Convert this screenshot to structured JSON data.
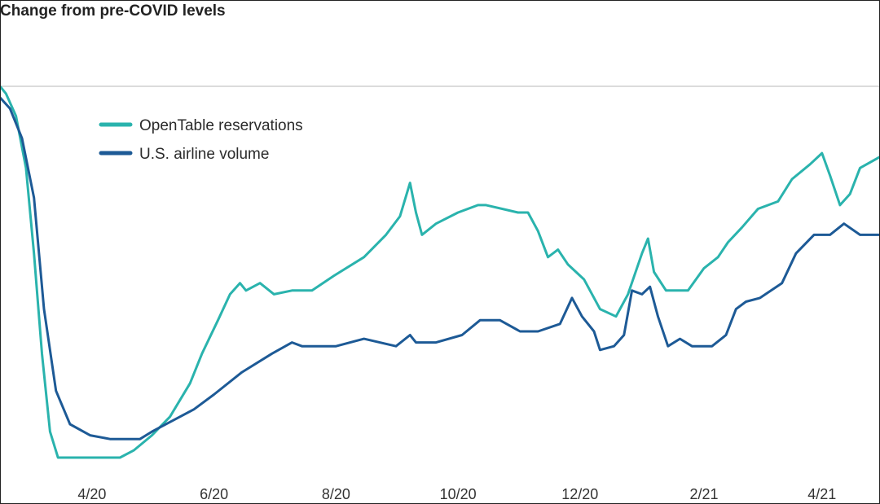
{
  "chart_data": {
    "type": "line",
    "title": "Change from pre-COVID levels",
    "xlabel": "",
    "ylabel": "",
    "x_ticks": [
      "4/20",
      "6/20",
      "8/20",
      "10/20",
      "12/20",
      "2/21",
      "4/21"
    ],
    "x_range": [
      "2020-02-15",
      "2021-04-30"
    ],
    "ylim": [
      -100,
      0
    ],
    "reference_line": 0,
    "grid": false,
    "legend_position": "top-left",
    "series": [
      {
        "name": "OpenTable reservations",
        "color": "#2ab3ad",
        "points": [
          [
            "2020-02-15",
            0
          ],
          [
            "2020-02-18",
            -2
          ],
          [
            "2020-02-23",
            -8
          ],
          [
            "2020-02-28",
            -22
          ],
          [
            "2020-03-03",
            -45
          ],
          [
            "2020-03-07",
            -72
          ],
          [
            "2020-03-11",
            -93
          ],
          [
            "2020-03-15",
            -100
          ],
          [
            "2020-04-01",
            -100
          ],
          [
            "2020-04-15",
            -100
          ],
          [
            "2020-04-22",
            -98
          ],
          [
            "2020-05-01",
            -94
          ],
          [
            "2020-05-10",
            -89
          ],
          [
            "2020-05-20",
            -80
          ],
          [
            "2020-05-26",
            -72
          ],
          [
            "2020-06-03",
            -63
          ],
          [
            "2020-06-09",
            -56
          ],
          [
            "2020-06-14",
            -53
          ],
          [
            "2020-06-17",
            -55
          ],
          [
            "2020-06-24",
            -53
          ],
          [
            "2020-07-01",
            -56
          ],
          [
            "2020-07-10",
            -55
          ],
          [
            "2020-07-20",
            -55
          ],
          [
            "2020-07-31",
            -51
          ],
          [
            "2020-08-15",
            -46
          ],
          [
            "2020-08-26",
            -40
          ],
          [
            "2020-09-02",
            -35
          ],
          [
            "2020-09-07",
            -26
          ],
          [
            "2020-09-10",
            -34
          ],
          [
            "2020-09-13",
            -40
          ],
          [
            "2020-09-20",
            -37
          ],
          [
            "2020-10-01",
            -34
          ],
          [
            "2020-10-11",
            -32
          ],
          [
            "2020-10-15",
            -32
          ],
          [
            "2020-10-31",
            -34
          ],
          [
            "2020-11-05",
            -34
          ],
          [
            "2020-11-10",
            -39
          ],
          [
            "2020-11-15",
            -46
          ],
          [
            "2020-11-20",
            -44
          ],
          [
            "2020-11-25",
            -48
          ],
          [
            "2020-12-03",
            -52
          ],
          [
            "2020-12-11",
            -60
          ],
          [
            "2020-12-19",
            -62
          ],
          [
            "2020-12-25",
            -56
          ],
          [
            "2021-01-01",
            -45
          ],
          [
            "2021-01-04",
            -41
          ],
          [
            "2021-01-07",
            -50
          ],
          [
            "2021-01-13",
            -55
          ],
          [
            "2021-01-24",
            -55
          ],
          [
            "2021-02-01",
            -49
          ],
          [
            "2021-02-08",
            -46
          ],
          [
            "2021-02-13",
            -42
          ],
          [
            "2021-02-20",
            -38
          ],
          [
            "2021-02-28",
            -33
          ],
          [
            "2021-03-10",
            -31
          ],
          [
            "2021-03-17",
            -25
          ],
          [
            "2021-03-26",
            -21
          ],
          [
            "2021-04-01",
            -18
          ],
          [
            "2021-04-05",
            -24
          ],
          [
            "2021-04-10",
            -32
          ],
          [
            "2021-04-15",
            -29
          ],
          [
            "2021-04-20",
            -22
          ],
          [
            "2021-04-30",
            -19
          ]
        ]
      },
      {
        "name": "U.S. airline volume",
        "color": "#1d5a96",
        "points": [
          [
            "2020-02-15",
            -3
          ],
          [
            "2020-02-20",
            -6
          ],
          [
            "2020-02-26",
            -14
          ],
          [
            "2020-03-03",
            -30
          ],
          [
            "2020-03-08",
            -60
          ],
          [
            "2020-03-14",
            -82
          ],
          [
            "2020-03-21",
            -91
          ],
          [
            "2020-03-31",
            -94
          ],
          [
            "2020-04-10",
            -95
          ],
          [
            "2020-04-25",
            -95
          ],
          [
            "2020-05-01",
            -93
          ],
          [
            "2020-05-15",
            -89
          ],
          [
            "2020-05-22",
            -87
          ],
          [
            "2020-06-01",
            -83
          ],
          [
            "2020-06-15",
            -77
          ],
          [
            "2020-06-30",
            -72
          ],
          [
            "2020-07-10",
            -69
          ],
          [
            "2020-07-15",
            -70
          ],
          [
            "2020-08-01",
            -70
          ],
          [
            "2020-08-15",
            -68
          ],
          [
            "2020-08-31",
            -70
          ],
          [
            "2020-09-07",
            -67
          ],
          [
            "2020-09-10",
            -69
          ],
          [
            "2020-09-20",
            -69
          ],
          [
            "2020-10-03",
            -67
          ],
          [
            "2020-10-12",
            -63
          ],
          [
            "2020-10-22",
            -63
          ],
          [
            "2020-11-01",
            -66
          ],
          [
            "2020-11-10",
            -66
          ],
          [
            "2020-11-21",
            -64
          ],
          [
            "2020-11-27",
            -57
          ],
          [
            "2020-12-02",
            -62
          ],
          [
            "2020-12-08",
            -66
          ],
          [
            "2020-12-11",
            -71
          ],
          [
            "2020-12-18",
            -70
          ],
          [
            "2020-12-23",
            -67
          ],
          [
            "2020-12-27",
            -55
          ],
          [
            "2021-01-01",
            -56
          ],
          [
            "2021-01-05",
            -54
          ],
          [
            "2021-01-09",
            -62
          ],
          [
            "2021-01-14",
            -70
          ],
          [
            "2021-01-20",
            -68
          ],
          [
            "2021-01-26",
            -70
          ],
          [
            "2021-02-05",
            -70
          ],
          [
            "2021-02-12",
            -67
          ],
          [
            "2021-02-17",
            -60
          ],
          [
            "2021-02-22",
            -58
          ],
          [
            "2021-03-01",
            -57
          ],
          [
            "2021-03-12",
            -53
          ],
          [
            "2021-03-19",
            -45
          ],
          [
            "2021-03-28",
            -40
          ],
          [
            "2021-04-05",
            -40
          ],
          [
            "2021-04-12",
            -37
          ],
          [
            "2021-04-20",
            -40
          ],
          [
            "2021-04-30",
            -40
          ]
        ]
      }
    ]
  }
}
